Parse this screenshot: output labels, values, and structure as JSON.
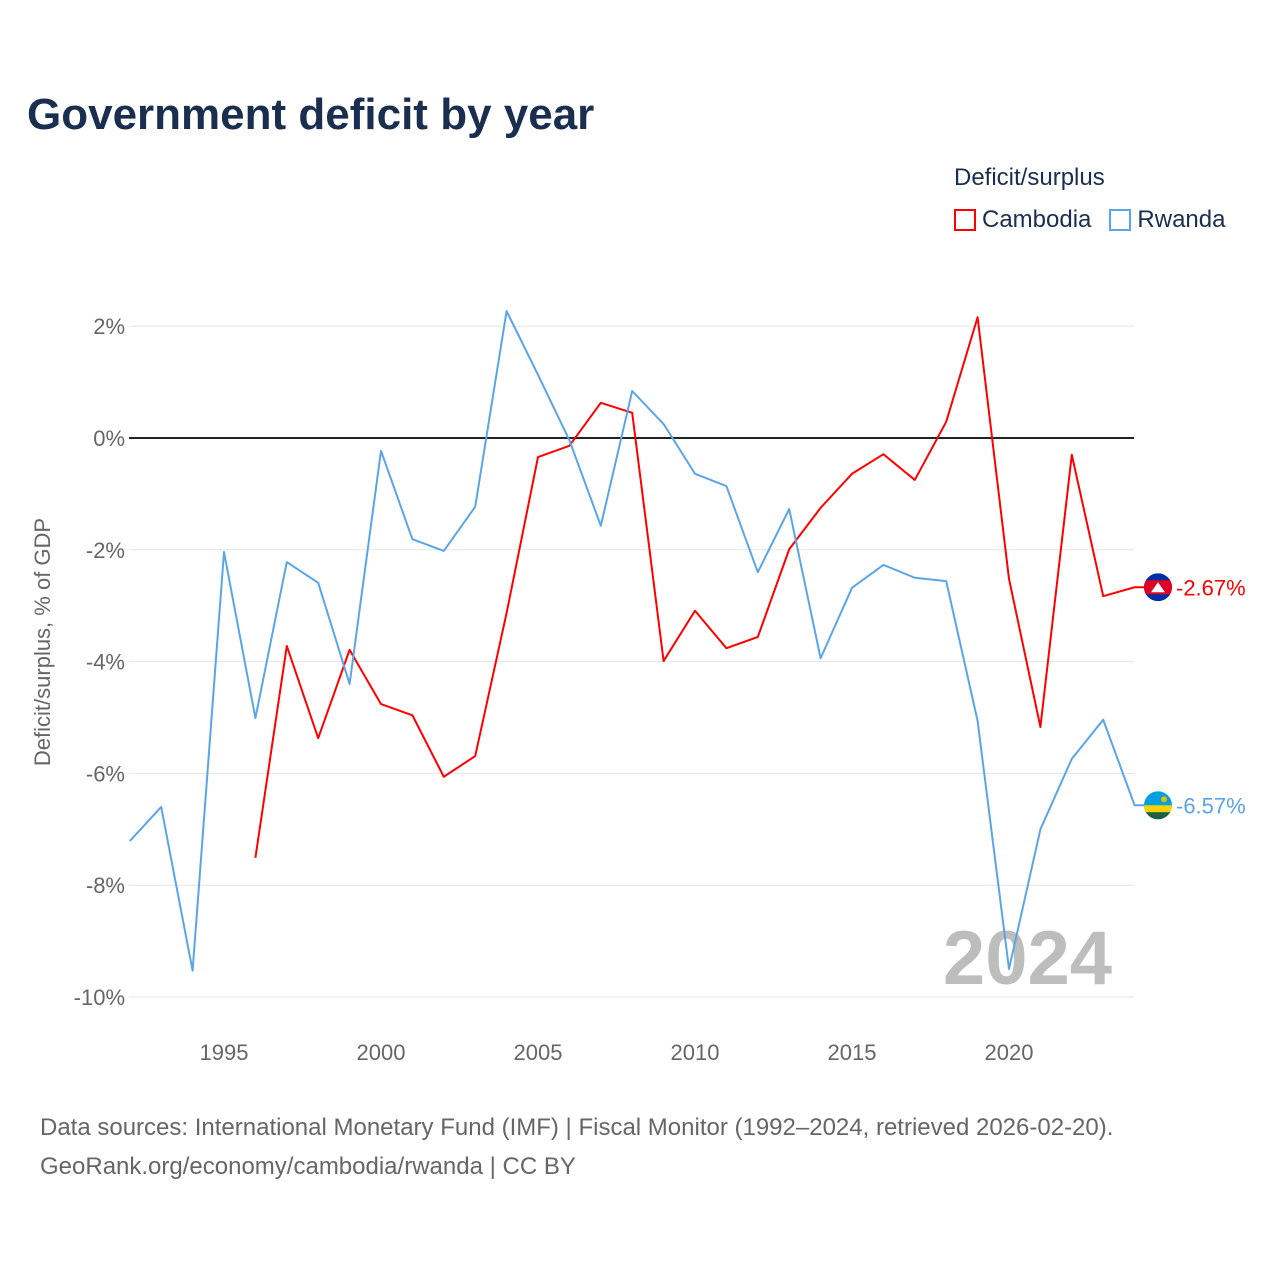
{
  "title": "Government deficit by year",
  "legend": {
    "title": "Deficit/surplus",
    "items": [
      {
        "name": "Cambodia",
        "color": "#ff0000"
      },
      {
        "name": "Rwanda",
        "color": "#5aa5ea"
      }
    ]
  },
  "source": {
    "line1": "Data sources: International Monetary Fund (IMF) | Fiscal Monitor (1992–2024, retrieved 2026-02-20).",
    "line2": "GeoRank.org/economy/cambodia/rwanda | CC BY"
  },
  "chart_data": {
    "type": "line",
    "title": "Government deficit by year",
    "ylabel": "Deficit/surplus, % of GDP",
    "xlabel": "",
    "xlim": [
      1992,
      2024
    ],
    "ylim": [
      -10,
      2.3
    ],
    "yticks": [
      2,
      0,
      -2,
      -4,
      -6,
      -8,
      -10
    ],
    "ytick_labels": [
      "2%",
      "0%",
      "-2%",
      "-4%",
      "-6%",
      "-8%",
      "-10%"
    ],
    "xticks": [
      1995,
      2000,
      2005,
      2010,
      2015,
      2020
    ],
    "xtick_labels": [
      "1995",
      "2000",
      "2005",
      "2010",
      "2015",
      "2020"
    ],
    "watermark_year": "2024",
    "series": [
      {
        "name": "Cambodia",
        "color": "#ff0000",
        "end_label": "-2.67%",
        "x": [
          1996,
          1997,
          1998,
          1999,
          2000,
          2001,
          2002,
          2003,
          2004,
          2005,
          2006,
          2007,
          2008,
          2009,
          2010,
          2011,
          2012,
          2013,
          2014,
          2015,
          2016,
          2017,
          2018,
          2019,
          2020,
          2021,
          2022,
          2023,
          2024
        ],
        "values": [
          -7.51,
          -3.72,
          -5.37,
          -3.79,
          -4.76,
          -4.96,
          -6.06,
          -5.69,
          -3.13,
          -0.34,
          -0.14,
          0.63,
          0.45,
          -3.99,
          -3.09,
          -3.76,
          -3.56,
          -1.99,
          -1.25,
          -0.64,
          -0.29,
          -0.75,
          0.29,
          2.16,
          -2.52,
          -5.17,
          -0.3,
          -2.83,
          -2.67
        ]
      },
      {
        "name": "Rwanda",
        "color": "#5aa5ea",
        "end_label": "-6.57%",
        "x": [
          1992,
          1993,
          1994,
          1995,
          1996,
          1997,
          1998,
          1999,
          2000,
          2001,
          2002,
          2003,
          2004,
          2005,
          2006,
          2007,
          2008,
          2009,
          2010,
          2011,
          2012,
          2013,
          2014,
          2015,
          2016,
          2017,
          2018,
          2019,
          2020,
          2021,
          2022,
          2023,
          2024
        ],
        "values": [
          -7.21,
          -6.6,
          -9.53,
          -2.04,
          -5.01,
          -2.22,
          -2.59,
          -4.4,
          -0.23,
          -1.81,
          -2.02,
          -1.23,
          2.27,
          1.13,
          -0.04,
          -1.57,
          0.84,
          0.25,
          -0.64,
          -0.86,
          -2.4,
          -1.27,
          -3.94,
          -2.68,
          -2.27,
          -2.5,
          -2.56,
          -5.06,
          -9.5,
          -7.0,
          -5.74,
          -5.04,
          -6.57
        ]
      }
    ]
  }
}
